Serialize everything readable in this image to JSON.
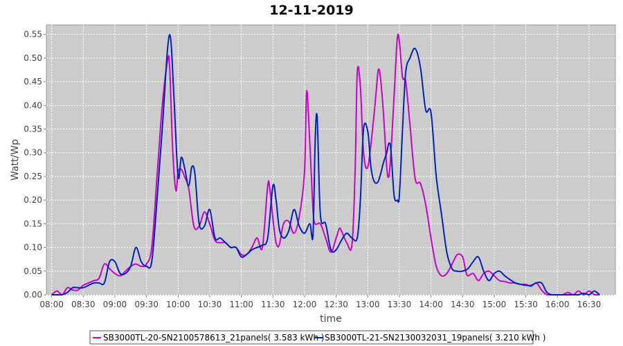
{
  "chart_data": {
    "type": "line",
    "title": "12-11-2019",
    "xlabel": "time",
    "ylabel": "Watt/Wp",
    "xlim": [
      "07:55",
      "16:55"
    ],
    "ylim": [
      0,
      0.57
    ],
    "grid": true,
    "legend_position": "bottom",
    "x_ticks": [
      "08:00",
      "08:30",
      "09:00",
      "09:30",
      "10:00",
      "10:30",
      "11:00",
      "11:30",
      "12:00",
      "12:30",
      "13:00",
      "13:30",
      "14:00",
      "14:30",
      "15:00",
      "15:30",
      "16:00",
      "16:30"
    ],
    "y_ticks": [
      "0.00",
      "0.05",
      "0.10",
      "0.15",
      "0.20",
      "0.25",
      "0.30",
      "0.35",
      "0.40",
      "0.45",
      "0.50",
      "0.55"
    ],
    "series": [
      {
        "name": "SB3000TL-20-SN2100578613_21panels( 3.583 kWh )",
        "color": "#cc00cc",
        "x": [
          "08:00",
          "08:05",
          "08:10",
          "08:15",
          "08:20",
          "08:25",
          "08:30",
          "08:35",
          "08:40",
          "08:45",
          "08:50",
          "08:55",
          "09:00",
          "09:05",
          "09:10",
          "09:15",
          "09:20",
          "09:25",
          "09:30",
          "09:35",
          "09:40",
          "09:45",
          "09:50",
          "09:52",
          "09:55",
          "09:58",
          "10:00",
          "10:03",
          "10:06",
          "10:10",
          "10:15",
          "10:20",
          "10:25",
          "10:30",
          "10:35",
          "10:40",
          "10:45",
          "10:50",
          "10:55",
          "11:00",
          "11:05",
          "11:10",
          "11:15",
          "11:20",
          "11:25",
          "11:27",
          "11:30",
          "11:33",
          "11:36",
          "11:40",
          "11:45",
          "11:50",
          "11:55",
          "12:00",
          "12:02",
          "12:05",
          "12:08",
          "12:10",
          "12:15",
          "12:20",
          "12:25",
          "12:30",
          "12:33",
          "12:35",
          "12:40",
          "12:45",
          "12:48",
          "12:50",
          "12:53",
          "12:56",
          "13:00",
          "13:05",
          "13:08",
          "13:10",
          "13:12",
          "13:15",
          "13:18",
          "13:20",
          "13:22",
          "13:25",
          "13:28",
          "13:30",
          "13:33",
          "13:36",
          "13:40",
          "13:45",
          "13:50",
          "13:55",
          "14:00",
          "14:05",
          "14:10",
          "14:15",
          "14:20",
          "14:25",
          "14:30",
          "14:33",
          "14:35",
          "14:40",
          "14:45",
          "14:50",
          "14:55",
          "15:00",
          "15:05",
          "15:10",
          "15:15",
          "15:20",
          "15:25",
          "15:30",
          "15:35",
          "15:40",
          "15:45",
          "15:50",
          "15:55",
          "16:00",
          "16:05",
          "16:10",
          "16:15",
          "16:20",
          "16:25",
          "16:30",
          "16:35",
          "16:40"
        ],
        "y": [
          0.0,
          0.008,
          0.0,
          0.015,
          0.01,
          0.01,
          0.02,
          0.025,
          0.03,
          0.035,
          0.065,
          0.055,
          0.045,
          0.04,
          0.05,
          0.06,
          0.065,
          0.06,
          0.065,
          0.1,
          0.25,
          0.4,
          0.495,
          0.48,
          0.3,
          0.22,
          0.26,
          0.265,
          0.25,
          0.225,
          0.145,
          0.145,
          0.175,
          0.15,
          0.115,
          0.11,
          0.11,
          0.1,
          0.1,
          0.085,
          0.085,
          0.1,
          0.12,
          0.1,
          0.23,
          0.225,
          0.16,
          0.11,
          0.105,
          0.15,
          0.155,
          0.13,
          0.165,
          0.26,
          0.43,
          0.32,
          0.18,
          0.15,
          0.15,
          0.12,
          0.09,
          0.12,
          0.14,
          0.135,
          0.11,
          0.105,
          0.26,
          0.47,
          0.44,
          0.3,
          0.27,
          0.36,
          0.43,
          0.475,
          0.46,
          0.38,
          0.27,
          0.25,
          0.3,
          0.42,
          0.54,
          0.535,
          0.46,
          0.45,
          0.36,
          0.245,
          0.235,
          0.19,
          0.12,
          0.06,
          0.04,
          0.045,
          0.065,
          0.085,
          0.08,
          0.05,
          0.04,
          0.045,
          0.03,
          0.045,
          0.05,
          0.04,
          0.03,
          0.028,
          0.025,
          0.025,
          0.022,
          0.022,
          0.018,
          0.025,
          0.01,
          0.0,
          0.0,
          0.0,
          0.0,
          0.005,
          0.0,
          0.008,
          0.0,
          0.008,
          0.0,
          0.0
        ]
      },
      {
        "name": "SB3000TL-21-SN2130032031_19panels( 3.210 kWh )",
        "color": "#0022bb",
        "x": [
          "08:00",
          "08:05",
          "08:10",
          "08:15",
          "08:20",
          "08:25",
          "08:30",
          "08:35",
          "08:40",
          "08:45",
          "08:50",
          "08:55",
          "09:00",
          "09:05",
          "09:10",
          "09:15",
          "09:20",
          "09:25",
          "09:30",
          "09:35",
          "09:40",
          "09:45",
          "09:50",
          "09:53",
          "09:56",
          "10:00",
          "10:03",
          "10:06",
          "10:10",
          "10:13",
          "10:16",
          "10:20",
          "10:25",
          "10:30",
          "10:35",
          "10:40",
          "10:45",
          "10:50",
          "10:55",
          "11:00",
          "11:05",
          "11:10",
          "11:15",
          "11:20",
          "11:25",
          "11:30",
          "11:33",
          "11:36",
          "11:40",
          "11:45",
          "11:50",
          "11:55",
          "12:00",
          "12:05",
          "12:08",
          "12:10",
          "12:12",
          "12:15",
          "12:20",
          "12:25",
          "12:30",
          "12:35",
          "12:40",
          "12:45",
          "12:50",
          "12:53",
          "12:56",
          "13:00",
          "13:03",
          "13:06",
          "13:10",
          "13:15",
          "13:18",
          "13:20",
          "13:22",
          "13:25",
          "13:28",
          "13:30",
          "13:33",
          "13:36",
          "13:40",
          "13:45",
          "13:50",
          "13:55",
          "14:00",
          "14:05",
          "14:10",
          "14:15",
          "14:20",
          "14:25",
          "14:30",
          "14:35",
          "14:40",
          "14:45",
          "14:50",
          "14:55",
          "15:00",
          "15:05",
          "15:10",
          "15:15",
          "15:20",
          "15:25",
          "15:30",
          "15:35",
          "15:40",
          "15:45",
          "15:50",
          "15:55",
          "16:00",
          "16:05",
          "16:10",
          "16:15",
          "16:20",
          "16:25",
          "16:30",
          "16:35",
          "16:40"
        ],
        "y": [
          0.0,
          0.0,
          0.0,
          0.005,
          0.015,
          0.015,
          0.015,
          0.02,
          0.025,
          0.025,
          0.025,
          0.07,
          0.07,
          0.045,
          0.045,
          0.06,
          0.1,
          0.07,
          0.06,
          0.07,
          0.2,
          0.35,
          0.52,
          0.54,
          0.42,
          0.25,
          0.29,
          0.27,
          0.23,
          0.27,
          0.255,
          0.15,
          0.145,
          0.18,
          0.12,
          0.12,
          0.11,
          0.1,
          0.1,
          0.08,
          0.085,
          0.095,
          0.1,
          0.105,
          0.12,
          0.23,
          0.2,
          0.14,
          0.12,
          0.135,
          0.18,
          0.145,
          0.13,
          0.15,
          0.125,
          0.32,
          0.375,
          0.17,
          0.15,
          0.095,
          0.095,
          0.115,
          0.13,
          0.12,
          0.12,
          0.2,
          0.35,
          0.345,
          0.27,
          0.24,
          0.24,
          0.28,
          0.3,
          0.32,
          0.305,
          0.21,
          0.2,
          0.21,
          0.35,
          0.47,
          0.5,
          0.52,
          0.48,
          0.39,
          0.385,
          0.25,
          0.17,
          0.09,
          0.055,
          0.05,
          0.05,
          0.055,
          0.07,
          0.08,
          0.05,
          0.03,
          0.045,
          0.05,
          0.04,
          0.032,
          0.025,
          0.022,
          0.02,
          0.02,
          0.025,
          0.025,
          0.005,
          0.0,
          0.0,
          0.0,
          0.0,
          0.0,
          0.0,
          0.003,
          0.0,
          0.008,
          0.0
        ]
      }
    ]
  }
}
